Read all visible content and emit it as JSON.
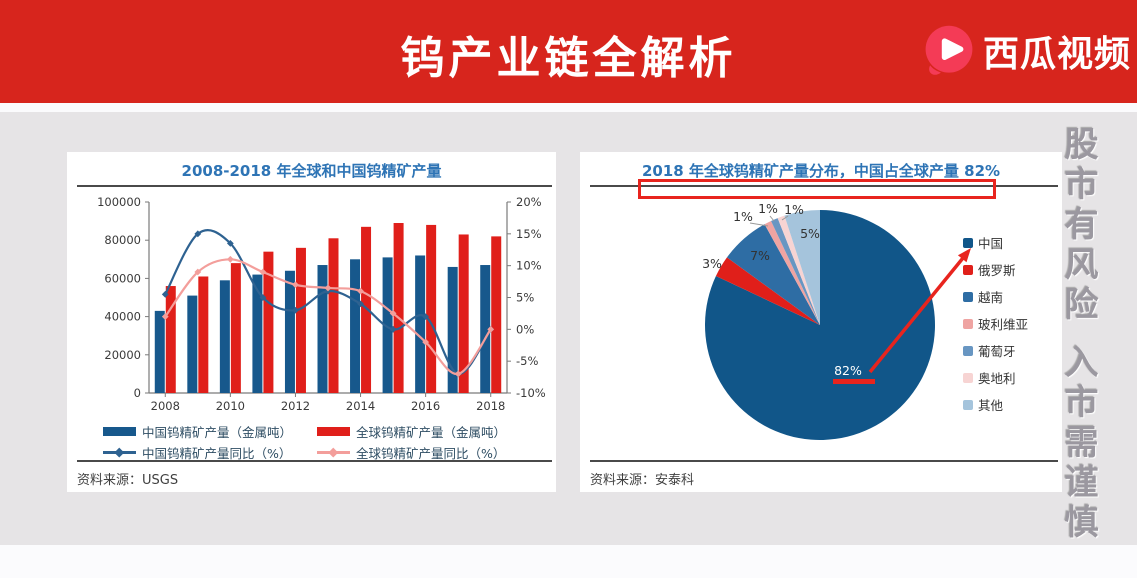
{
  "header": {
    "title": "钨产业链全解析",
    "brand_name": "西瓜视频",
    "brand_icon": "play-icon",
    "brand_color": "#F43B56",
    "background": "#D7251D"
  },
  "watermark": "股市有风险 入市需谨慎",
  "colors": {
    "page_bg": "#FBFBFD",
    "content_bg": "#E6E4E6",
    "panel_bg": "#FFFFFF",
    "panel_title_blue": "#2E74B5",
    "annotation_red": "#E8241E",
    "axis_text": "#3A3A3A",
    "source_text": "#3F3F3F"
  },
  "chart_data": [
    {
      "type": "bar",
      "subtype": "bar-line-combo",
      "title": "2008-2018 年全球和中国钨精矿产量",
      "source": "资料来源：USGS",
      "grid": false,
      "legend_position": "bottom",
      "categories": [
        2008,
        2009,
        2010,
        2011,
        2012,
        2013,
        2014,
        2015,
        2016,
        2017,
        2018
      ],
      "x_tick_labels": [
        "2008",
        "2010",
        "2012",
        "2014",
        "2016",
        "2018"
      ],
      "left_axis": {
        "min": 0,
        "max": 100000,
        "ticks": [
          0,
          20000,
          40000,
          60000,
          80000,
          100000
        ]
      },
      "right_axis": {
        "min": -10,
        "max": 20,
        "tick_labels": [
          "20%",
          "15%",
          "10%",
          "5%",
          "0%",
          "-5%",
          "-10%"
        ],
        "tick_values": [
          20,
          15,
          10,
          5,
          0,
          -5,
          -10
        ]
      },
      "series": [
        {
          "name": "中国钨精矿产量（金属吨）",
          "type": "bar",
          "axis": "left",
          "color": "#17588C",
          "values": [
            43000,
            51000,
            59000,
            62000,
            64000,
            67000,
            70000,
            71000,
            72000,
            66000,
            67000
          ]
        },
        {
          "name": "全球钨精矿产量（金属吨）",
          "type": "bar",
          "axis": "left",
          "color": "#E01F1A",
          "values": [
            56000,
            61000,
            68000,
            74000,
            76000,
            81000,
            87000,
            89000,
            88000,
            83000,
            82000
          ]
        },
        {
          "name": "中国钨精矿产量同比（%）",
          "type": "line",
          "axis": "right",
          "color": "#2E6291",
          "values": [
            5.5,
            15,
            13.5,
            5,
            3,
            6,
            4,
            0,
            2,
            -7,
            0
          ]
        },
        {
          "name": "全球钨精矿产量同比（%）",
          "type": "line",
          "axis": "right",
          "color": "#F39E9B",
          "values": [
            2,
            9,
            11,
            9,
            7,
            6.5,
            6,
            2.5,
            -2,
            -7,
            0
          ]
        }
      ]
    },
    {
      "type": "pie",
      "title": "2018 年全球钨精矿产量分布，中国占全球产量 82%",
      "source": "资料来源：安泰科",
      "legend_position": "right",
      "slices": [
        {
          "label": "中国",
          "value": 82,
          "pct_label": "82%",
          "color": "#115689"
        },
        {
          "label": "俄罗斯",
          "value": 3,
          "pct_label": "3%",
          "color": "#E01F1A"
        },
        {
          "label": "越南",
          "value": 7,
          "pct_label": "7%",
          "color": "#2E6DA4"
        },
        {
          "label": "玻利维亚",
          "value": 1,
          "pct_label": "1%",
          "color": "#EFA4A2"
        },
        {
          "label": "葡萄牙",
          "value": 1,
          "pct_label": "1%",
          "color": "#6896C2"
        },
        {
          "label": "奥地利",
          "value": 1,
          "pct_label": "1%",
          "color": "#F7D4D3"
        },
        {
          "label": "其他",
          "value": 5,
          "pct_label": "5%",
          "color": "#A5C4DC"
        }
      ]
    }
  ]
}
